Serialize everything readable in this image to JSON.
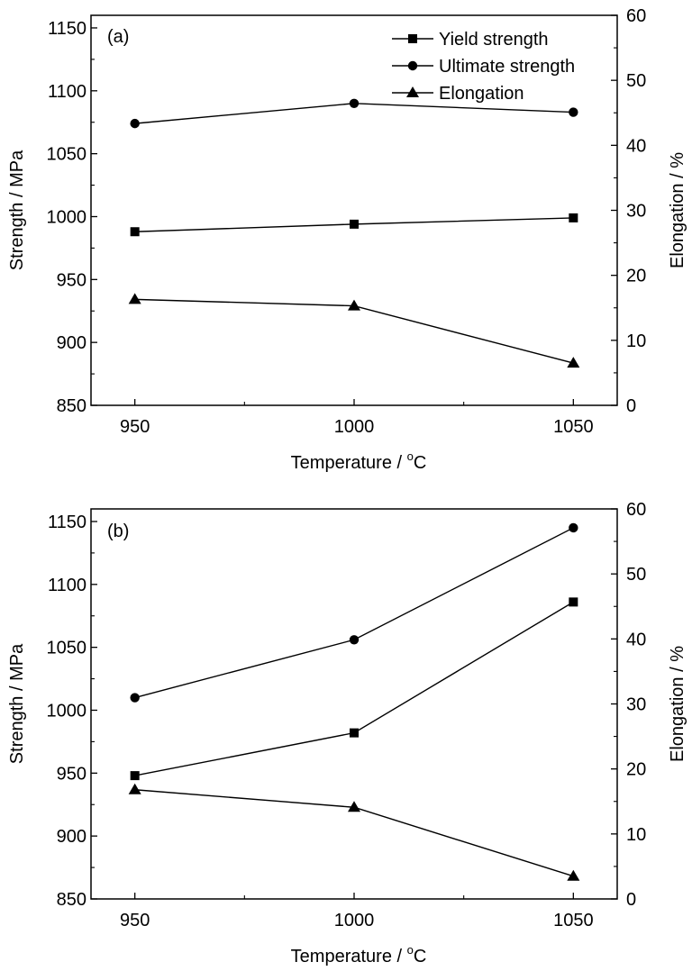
{
  "chart_data": [
    {
      "type": "line",
      "panel_label": "(a)",
      "x": [
        950,
        1000,
        1050
      ],
      "xlabel_main": "Temperature / ",
      "xlabel_sup": "o",
      "xlabel_unit": "C",
      "ylabel": "Strength / MPa",
      "y2label": "Elongation / %",
      "xlim": [
        940,
        1060
      ],
      "ylim": [
        850,
        1160
      ],
      "y2lim": [
        0,
        60
      ],
      "xticks": [
        "950",
        "1000",
        "1050"
      ],
      "yticks": [
        "850",
        "900",
        "950",
        "1000",
        "1050",
        "1100",
        "1150"
      ],
      "y2ticks": [
        "0",
        "10",
        "20",
        "30",
        "40",
        "50",
        "60"
      ],
      "legend_position": "top-right",
      "series": [
        {
          "name": "Yield strength",
          "axis": "left",
          "marker": "square",
          "values": [
            988,
            994,
            999
          ]
        },
        {
          "name": "Ultimate strength",
          "axis": "left",
          "marker": "circle",
          "values": [
            1074,
            1090,
            1083
          ]
        },
        {
          "name": "Elongation",
          "axis": "right",
          "marker": "triangle",
          "values": [
            16.3,
            15.3,
            6.5
          ]
        }
      ]
    },
    {
      "type": "line",
      "panel_label": "(b)",
      "x": [
        950,
        1000,
        1050
      ],
      "xlabel_main": "Temperature / ",
      "xlabel_sup": "o",
      "xlabel_unit": "C",
      "ylabel": "Strength / MPa",
      "y2label": "Elongation / %",
      "xlim": [
        940,
        1060
      ],
      "ylim": [
        850,
        1160
      ],
      "y2lim": [
        0,
        60
      ],
      "xticks": [
        "950",
        "1000",
        "1050"
      ],
      "yticks": [
        "850",
        "900",
        "950",
        "1000",
        "1050",
        "1100",
        "1150"
      ],
      "y2ticks": [
        "0",
        "10",
        "20",
        "30",
        "40",
        "50",
        "60"
      ],
      "legend_position": "none",
      "series": [
        {
          "name": "Yield strength",
          "axis": "left",
          "marker": "square",
          "values": [
            948,
            982,
            1086
          ]
        },
        {
          "name": "Ultimate strength",
          "axis": "left",
          "marker": "circle",
          "values": [
            1010,
            1056,
            1145
          ]
        },
        {
          "name": "Elongation",
          "axis": "right",
          "marker": "triangle",
          "values": [
            16.8,
            14.1,
            3.5
          ]
        }
      ]
    }
  ]
}
